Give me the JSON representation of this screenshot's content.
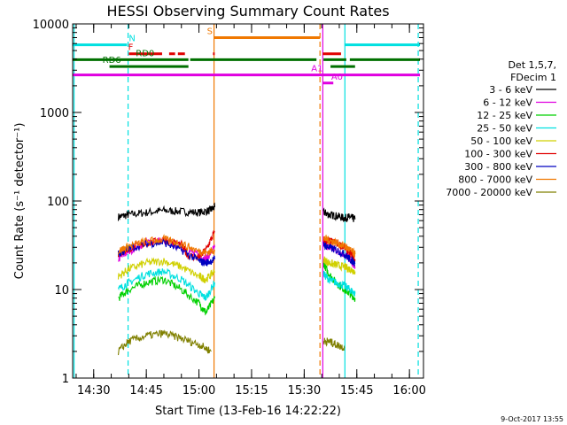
{
  "chart_data": {
    "type": "line",
    "title": "HESSI Observing Summary Count Rates",
    "xlabel": "Start Time (13-Feb-16 14:22:22)",
    "ylabel": "Count Rate (s⁻¹ detector⁻¹)",
    "yscale": "log",
    "ylim": [
      1,
      10000
    ],
    "xlim_min": [
      22,
      122
    ],
    "xticks": [
      {
        "min": 28,
        "label": "14:30"
      },
      {
        "min": 43,
        "label": "14:45"
      },
      {
        "min": 58,
        "label": "15:00"
      },
      {
        "min": 73,
        "label": "15:15"
      },
      {
        "min": 88,
        "label": "15:30"
      },
      {
        "min": 103,
        "label": "15:45"
      },
      {
        "min": 118,
        "label": "16:00"
      }
    ],
    "yticks": [
      {
        "v": 1,
        "label": "1"
      },
      {
        "v": 10,
        "label": "10"
      },
      {
        "v": 100,
        "label": "100"
      },
      {
        "v": 1000,
        "label": "1000"
      },
      {
        "v": 10000,
        "label": "10000"
      }
    ],
    "legend_title": [
      "Det 1,5,7,",
      "FDecim 1"
    ],
    "legend_position": "right",
    "series": [
      {
        "name": "3 - 6 keV",
        "color": "#000000",
        "segments": [
          {
            "x": [
              35,
              38,
              43,
              48,
              53,
              58,
              61,
              62.5
            ],
            "y": [
              66,
              70,
              74,
              78,
              76,
              74,
              78,
              85
            ]
          },
          {
            "x": [
              93.5,
              95,
              97,
              99.5,
              101,
              102.5
            ],
            "y": [
              75,
              70,
              68,
              64,
              66,
              62
            ]
          }
        ]
      },
      {
        "name": "6 - 12 keV",
        "color": "#e000e0",
        "segments": [
          {
            "x": [
              35,
              38,
              43,
              48,
              53,
              58,
              60,
              62.5
            ],
            "y": [
              22,
              27,
              34,
              36,
              30,
              24,
              22,
              30
            ]
          },
          {
            "x": [
              93.5,
              95,
              97,
              99.5,
              101,
              102.5
            ],
            "y": [
              34,
              30,
              28,
              25,
              22,
              18
            ]
          }
        ]
      },
      {
        "name": "12 - 25 keV",
        "color": "#00d000",
        "segments": [
          {
            "x": [
              35,
              38,
              43,
              48,
              53,
              58,
              60,
              62.5
            ],
            "y": [
              8,
              10,
              12,
              13,
              10,
              7,
              5.5,
              8
            ]
          },
          {
            "x": [
              93.5,
              95,
              97,
              99.5,
              101,
              102.5
            ],
            "y": [
              20,
              15,
              12,
              10,
              9,
              8
            ]
          }
        ]
      },
      {
        "name": "25 - 50 keV",
        "color": "#00e0e0",
        "segments": [
          {
            "x": [
              35,
              38,
              43,
              48,
              53,
              58,
              60,
              62.5
            ],
            "y": [
              10,
              12,
              15,
              16,
              13,
              9,
              8,
              12
            ]
          },
          {
            "x": [
              93.5,
              95,
              97,
              99.5,
              101,
              102.5
            ],
            "y": [
              15,
              13,
              12,
              11,
              10,
              9
            ]
          }
        ]
      },
      {
        "name": "50 - 100 keV",
        "color": "#d0d000",
        "segments": [
          {
            "x": [
              35,
              38,
              43,
              48,
              53,
              58,
              60,
              62.5
            ],
            "y": [
              14,
              17,
              20,
              21,
              18,
              14,
              13,
              16
            ]
          },
          {
            "x": [
              93.5,
              95,
              97,
              99.5,
              101,
              102.5
            ],
            "y": [
              22,
              20,
              19,
              18,
              17,
              16
            ]
          }
        ]
      },
      {
        "name": "100 - 300 keV",
        "color": "#e00000",
        "segments": [
          {
            "x": [
              35,
              38,
              43,
              48,
              53,
              55,
              58,
              60,
              62.5
            ],
            "y": [
              25,
              29,
              33,
              36,
              32,
              24,
              23,
              28,
              45
            ]
          },
          {
            "x": [
              93.5,
              95,
              97,
              99.5,
              101,
              102.5
            ],
            "y": [
              36,
              35,
              34,
              30,
              26,
              22
            ]
          }
        ]
      },
      {
        "name": "300 - 800 keV",
        "color": "#0000c0",
        "segments": [
          {
            "x": [
              35,
              38,
              43,
              48,
              53,
              58,
              60,
              62.5
            ],
            "y": [
              25,
              29,
              33,
              34,
              28,
              21,
              20,
              22
            ]
          },
          {
            "x": [
              93.5,
              95,
              97,
              99.5,
              101,
              102.5
            ],
            "y": [
              32,
              30,
              28,
              25,
              22,
              20
            ]
          }
        ]
      },
      {
        "name": "800 - 7000 keV",
        "color": "#f07800",
        "segments": [
          {
            "x": [
              35,
              38,
              43,
              48,
              53,
              58,
              60,
              62.5
            ],
            "y": [
              27,
              31,
              35,
              37,
              33,
              27,
              26,
              28
            ]
          },
          {
            "x": [
              93.5,
              95,
              97,
              99.5,
              101,
              102.5
            ],
            "y": [
              38,
              36,
              34,
              31,
              28,
              25
            ]
          }
        ]
      },
      {
        "name": "7000 - 20000 keV",
        "color": "#808000",
        "segments": [
          {
            "x": [
              35,
              38,
              43,
              48,
              53,
              58,
              61.5
            ],
            "y": [
              2,
              2.6,
              3,
              3.2,
              2.8,
              2.4,
              2
            ]
          },
          {
            "x": [
              93.5,
              95,
              97,
              99.5
            ],
            "y": [
              2.6,
              2.6,
              2.4,
              2.2
            ]
          }
        ]
      }
    ],
    "flags": [
      {
        "label": "N",
        "color": "#00e0e0",
        "y": 5800,
        "label_min": 38,
        "segments": [
          [
            22,
            37.5
          ],
          [
            99.5,
            121
          ]
        ]
      },
      {
        "label": "F",
        "color": "#e00000",
        "y": 4600,
        "label_min": 37.8,
        "segments": [
          [
            38,
            47.5
          ],
          [
            49.5,
            51.2
          ],
          [
            52,
            54
          ],
          [
            62,
            62.5
          ],
          [
            93.3,
            98.5
          ]
        ]
      },
      {
        "label": "S",
        "color": "#f07800",
        "y": 7000,
        "label_min": 60.3,
        "segments": [
          [
            62.3,
            92.5
          ]
        ]
      },
      {
        "label": "RD0",
        "color": "#007000",
        "y": 3950,
        "label_min": 40,
        "segments": [
          [
            22,
            55
          ],
          [
            55.5,
            91.5
          ],
          [
            93.5,
            100
          ],
          [
            101,
            121
          ]
        ]
      },
      {
        "label": "RD6",
        "color": "#007000",
        "y": 3300,
        "label_min": 30.5,
        "segments": [
          [
            32.5,
            55
          ],
          [
            95.5,
            102.5
          ]
        ]
      },
      {
        "label": "A1",
        "color": "#e000e0",
        "y": 2650,
        "label_min": 90,
        "segments": [
          [
            22,
            121
          ]
        ]
      },
      {
        "label": "A0",
        "color": "#e000e0",
        "y": 2150,
        "label_min": 95.7,
        "segments": [
          [
            93.3,
            96.3
          ]
        ]
      }
    ],
    "vlines": [
      {
        "min": 22.4,
        "color": "#00e0e0",
        "dash": false
      },
      {
        "min": 37.8,
        "color": "#00e0e0",
        "dash": true
      },
      {
        "min": 62.3,
        "color": "#f07800",
        "dash": false
      },
      {
        "min": 92.5,
        "color": "#f07800",
        "dash": true
      },
      {
        "min": 93.3,
        "color": "#e000e0",
        "dash": false
      },
      {
        "min": 99.6,
        "color": "#00e0e0",
        "dash": false
      },
      {
        "min": 120.5,
        "color": "#00e0e0",
        "dash": true
      }
    ]
  },
  "footer": {
    "date_stamp": "9-Oct-2017 13:55"
  }
}
